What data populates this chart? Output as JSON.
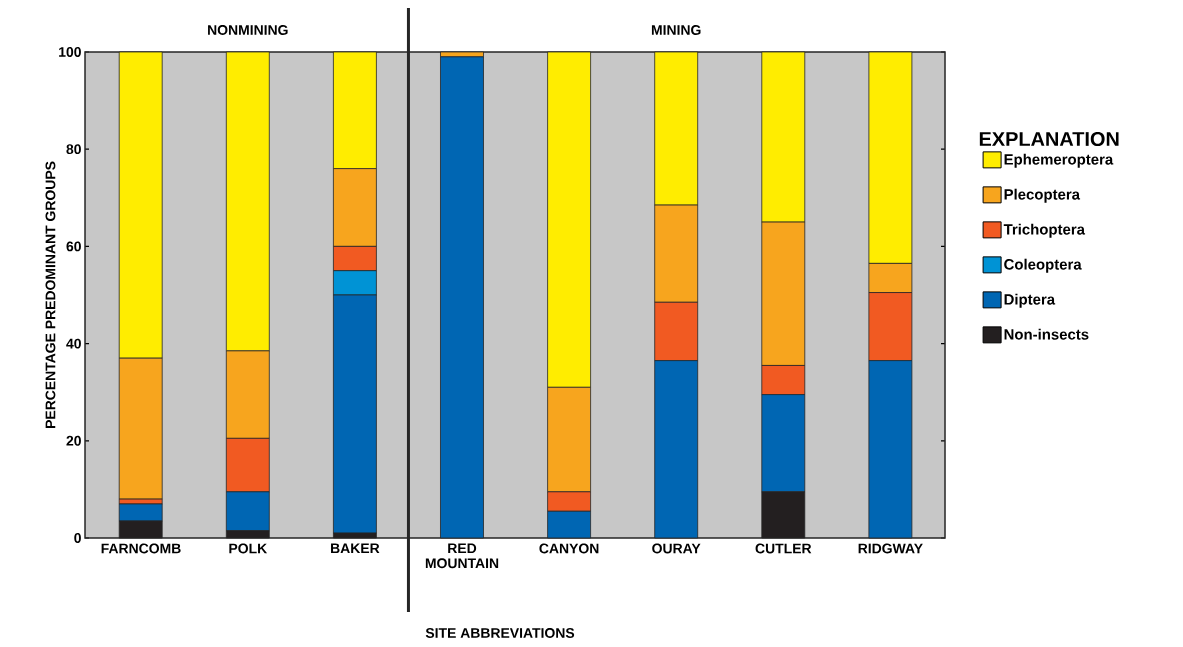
{
  "chart_data": {
    "type": "bar",
    "stacked": true,
    "xlabel": "SITE ABBREVIATIONS",
    "ylabel": "PERCENTAGE  PREDOMINANT GROUPS",
    "legend_title": "EXPLANATION",
    "legend": "right",
    "categories": [
      "FARNCOMB",
      "POLK",
      "BAKER",
      "RED MOUNTAIN",
      "CANYON",
      "OURAY",
      "CUTLER",
      "RIDGWAY"
    ],
    "ylim": [
      0,
      100
    ],
    "yticks": [
      0,
      20,
      40,
      60,
      80,
      100
    ],
    "series": [
      {
        "name": "Non-insects",
        "color": "#231f20",
        "values": [
          3.5,
          1.5,
          1,
          0,
          0,
          0,
          9.5,
          0
        ]
      },
      {
        "name": "Diptera",
        "color": "#0066b3",
        "values": [
          3.5,
          8,
          49,
          99,
          5.5,
          36.5,
          20,
          36.5
        ]
      },
      {
        "name": "Coleoptera",
        "color": "#0093d5",
        "values": [
          0,
          0,
          5,
          0,
          0,
          0,
          0,
          0
        ]
      },
      {
        "name": "Trichoptera",
        "color": "#f15a22",
        "values": [
          1,
          11,
          5,
          0,
          4,
          12,
          6,
          14
        ]
      },
      {
        "name": "Plecoptera",
        "color": "#f7a51e",
        "values": [
          29,
          18,
          16,
          1,
          21.5,
          20,
          29.5,
          6
        ]
      },
      {
        "name": "Ephemeroptera",
        "color": "#ffed00",
        "values": [
          63,
          61.5,
          24,
          0,
          69,
          31.5,
          35,
          43.5
        ]
      }
    ],
    "annotations": [
      "NONMINING",
      "MINING"
    ]
  }
}
